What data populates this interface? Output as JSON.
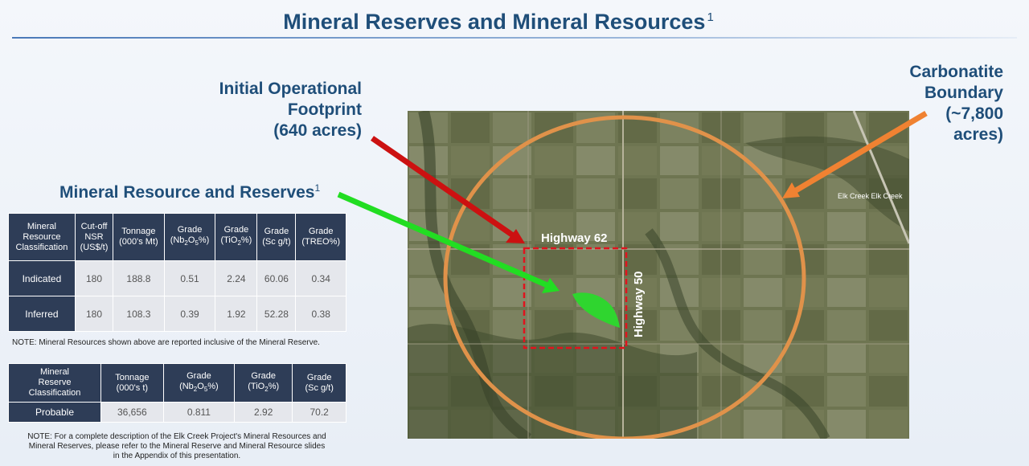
{
  "title": {
    "text": "Mineral Reserves and Mineral Resources",
    "sup": "1"
  },
  "callouts": {
    "footprint": [
      "Initial Operational",
      "Footprint",
      "(640 acres)"
    ],
    "resource": {
      "text": "Mineral Resource and Reserves",
      "sup": "1"
    },
    "carbonatite": [
      "Carbonatite",
      "Boundary",
      "(~7,800",
      "acres)"
    ]
  },
  "resources_table": {
    "headers": {
      "classification": [
        "Mineral",
        "Resource",
        "Classification"
      ],
      "cutoff": [
        "Cut-off",
        "NSR",
        "(US$/t)"
      ],
      "tonnage": [
        "Tonnage",
        "(000's Mt)"
      ],
      "grade_nb": {
        "top": "Grade",
        "pre": "(Nb",
        "sub1": "2",
        "mid": "O",
        "sub2": "5",
        "post": "%)"
      },
      "grade_ti": {
        "top": "Grade",
        "pre": "(TiO",
        "sub": "2",
        "post": "%)"
      },
      "grade_sc": [
        "Grade",
        "(Sc g/t)"
      ],
      "grade_treo": [
        "Grade",
        "(TREO%)"
      ]
    },
    "rows": [
      {
        "label": "Indicated",
        "cells": [
          "180",
          "188.8",
          "0.51",
          "2.24",
          "60.06",
          "0.34"
        ]
      },
      {
        "label": "Inferred",
        "cells": [
          "180",
          "108.3",
          "0.39",
          "1.92",
          "52.28",
          "0.38"
        ]
      }
    ]
  },
  "note1": "NOTE:  Mineral Resources shown above are reported inclusive of the Mineral Reserve.",
  "reserves_table": {
    "headers": {
      "classification": [
        "Mineral",
        "Reserve",
        "Classification"
      ],
      "tonnage": [
        "Tonnage",
        "(000's t)"
      ],
      "grade_nb": {
        "top": "Grade",
        "pre": "(Nb",
        "sub1": "2",
        "mid": "O",
        "sub2": "5",
        "post": "%)"
      },
      "grade_ti": {
        "top": "Grade",
        "pre": "(TiO",
        "sub": "2",
        "post": "%)"
      },
      "grade_sc": [
        "Grade",
        "(Sc g/t)"
      ]
    },
    "rows": [
      {
        "label": "Probable",
        "cells": [
          "36,656",
          "0.811",
          "2.92",
          "70.2"
        ]
      }
    ]
  },
  "note2": [
    "NOTE:  For a complete description of the Elk Creek Project's Mineral Resources and",
    "Mineral Reserves, please refer to the Mineral Reserve and Mineral Resource slides",
    "in the Appendix of this presentation."
  ],
  "map": {
    "highway62": "Highway 62",
    "highway50": "Highway 50",
    "town": "Elk Creek  Elk Creek"
  },
  "colors": {
    "title": "#1f4e79",
    "table_header": "#2e3d57",
    "table_cell": "#e5e7ec",
    "boundary": "#e0924a",
    "footprint_box": "#e0141e",
    "deposit": "#2fd52f",
    "arrow_red": "#cc1111",
    "arrow_green": "#22dd22",
    "arrow_orange": "#f08232"
  }
}
